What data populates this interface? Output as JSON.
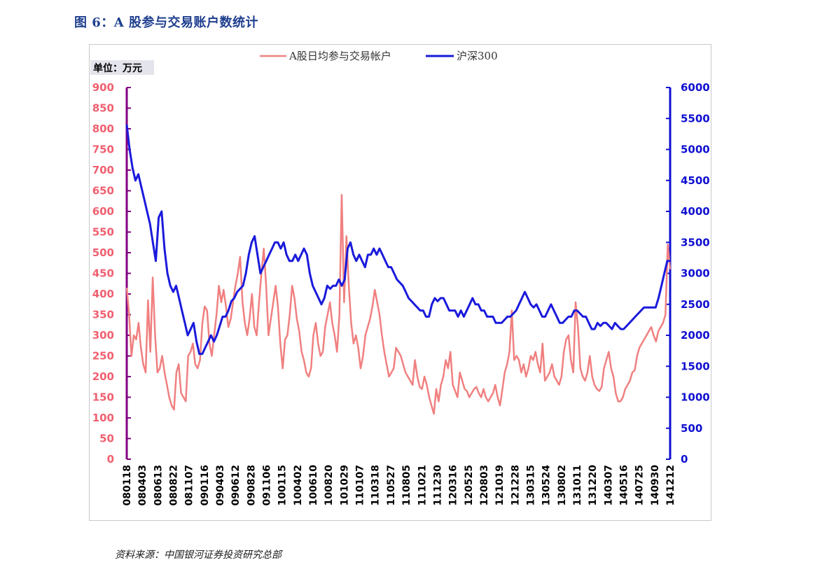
{
  "figure": {
    "title": "图 6：A 股参与交易账户数统计",
    "source": "资料来源：中国银河证券投资研究总部"
  },
  "chart_data": {
    "type": "line",
    "unit_label": "单位：万元",
    "legend_position": "top-center",
    "grid": false,
    "colors": {
      "left_series": "#f08080",
      "right_series": "#1a1adc",
      "left_axis": "#800080",
      "right_axis": "#1010d0",
      "left_ticks": "#f06070"
    },
    "left_axis": {
      "ylim": [
        0,
        900
      ],
      "ticks": [
        "0",
        "50",
        "100",
        "150",
        "200",
        "250",
        "300",
        "350",
        "400",
        "450",
        "500",
        "550",
        "600",
        "650",
        "700",
        "750",
        "800",
        "850",
        "900"
      ]
    },
    "right_axis": {
      "ylim": [
        0,
        6000
      ],
      "ticks": [
        "0",
        "500",
        "1000",
        "1500",
        "2000",
        "2500",
        "3000",
        "3500",
        "4000",
        "4500",
        "5000",
        "5500",
        "6000"
      ]
    },
    "x_tick_labels": [
      "080118",
      "080403",
      "080613",
      "080822",
      "081107",
      "090116",
      "090403",
      "090612",
      "090828",
      "091106",
      "100115",
      "100402",
      "100610",
      "100820",
      "101029",
      "110107",
      "110318",
      "110527",
      "110805",
      "111021",
      "111230",
      "120316",
      "120525",
      "120803",
      "121019",
      "121228",
      "130315",
      "130524",
      "130802",
      "131011",
      "131220",
      "140307",
      "140516",
      "140725",
      "140930",
      "141212"
    ],
    "series": [
      {
        "name": "A股日均参与交易帐户",
        "axis": "left",
        "values": [
          415,
          350,
          250,
          300,
          290,
          330,
          270,
          230,
          210,
          385,
          260,
          440,
          300,
          210,
          220,
          250,
          210,
          180,
          150,
          130,
          120,
          210,
          230,
          160,
          150,
          140,
          250,
          260,
          280,
          230,
          220,
          240,
          330,
          370,
          360,
          280,
          250,
          300,
          350,
          420,
          380,
          410,
          370,
          320,
          340,
          380,
          420,
          450,
          490,
          380,
          330,
          300,
          340,
          400,
          320,
          300,
          380,
          450,
          510,
          420,
          300,
          340,
          380,
          420,
          370,
          280,
          220,
          290,
          300,
          350,
          420,
          390,
          340,
          310,
          260,
          240,
          210,
          200,
          220,
          300,
          330,
          280,
          250,
          260,
          320,
          350,
          380,
          330,
          300,
          260,
          350,
          640,
          380,
          540,
          420,
          330,
          280,
          300,
          270,
          220,
          250,
          300,
          320,
          340,
          370,
          410,
          380,
          350,
          300,
          260,
          230,
          200,
          210,
          220,
          270,
          260,
          250,
          230,
          210,
          200,
          190,
          180,
          240,
          200,
          175,
          170,
          200,
          180,
          150,
          130,
          110,
          170,
          140,
          180,
          200,
          240,
          220,
          260,
          180,
          165,
          150,
          210,
          190,
          170,
          165,
          150,
          160,
          170,
          175,
          160,
          150,
          170,
          150,
          140,
          150,
          160,
          180,
          150,
          130,
          170,
          210,
          230,
          260,
          360,
          240,
          250,
          240,
          210,
          230,
          200,
          220,
          250,
          240,
          260,
          230,
          210,
          280,
          190,
          200,
          210,
          230,
          200,
          190,
          180,
          200,
          260,
          290,
          300,
          240,
          210,
          380,
          320,
          220,
          200,
          190,
          210,
          250,
          200,
          180,
          170,
          165,
          175,
          220,
          240,
          260,
          220,
          200,
          160,
          140,
          140,
          150,
          170,
          180,
          190,
          210,
          215,
          250,
          270,
          280,
          290,
          300,
          310,
          320,
          300,
          285,
          310,
          320,
          330,
          350,
          520,
          460
        ]
      },
      {
        "name": "沪深300",
        "axis": "right",
        "values": [
          5400,
          5000,
          4700,
          4500,
          4600,
          4400,
          4200,
          4000,
          3800,
          3500,
          3200,
          3900,
          4000,
          3400,
          3000,
          2800,
          2700,
          2800,
          2600,
          2400,
          2200,
          2000,
          2100,
          2200,
          1900,
          1700,
          1700,
          1800,
          1900,
          2000,
          1900,
          2000,
          2150,
          2300,
          2300,
          2400,
          2550,
          2600,
          2700,
          2750,
          2800,
          3000,
          3300,
          3500,
          3600,
          3300,
          3000,
          3100,
          3200,
          3300,
          3400,
          3500,
          3500,
          3400,
          3500,
          3300,
          3200,
          3200,
          3300,
          3200,
          3300,
          3400,
          3300,
          3000,
          2800,
          2700,
          2600,
          2500,
          2600,
          2800,
          2750,
          2800,
          2800,
          2900,
          2800,
          2900,
          3400,
          3500,
          3300,
          3200,
          3300,
          3200,
          3100,
          3300,
          3300,
          3400,
          3300,
          3400,
          3300,
          3200,
          3100,
          3100,
          3000,
          2900,
          2850,
          2800,
          2700,
          2600,
          2550,
          2500,
          2450,
          2400,
          2400,
          2300,
          2300,
          2500,
          2600,
          2550,
          2600,
          2600,
          2500,
          2400,
          2400,
          2400,
          2300,
          2400,
          2300,
          2400,
          2500,
          2600,
          2500,
          2500,
          2400,
          2400,
          2300,
          2300,
          2300,
          2200,
          2200,
          2200,
          2250,
          2300,
          2300,
          2350,
          2400,
          2500,
          2600,
          2700,
          2600,
          2500,
          2450,
          2500,
          2400,
          2300,
          2300,
          2400,
          2500,
          2400,
          2300,
          2200,
          2200,
          2250,
          2300,
          2300,
          2400,
          2400,
          2350,
          2300,
          2300,
          2200,
          2100,
          2100,
          2200,
          2150,
          2200,
          2200,
          2150,
          2100,
          2200,
          2150,
          2100,
          2100,
          2150,
          2200,
          2250,
          2300,
          2350,
          2400,
          2450,
          2450,
          2450,
          2450,
          2450,
          2600,
          2800,
          3000,
          3200,
          3200
        ]
      }
    ]
  }
}
